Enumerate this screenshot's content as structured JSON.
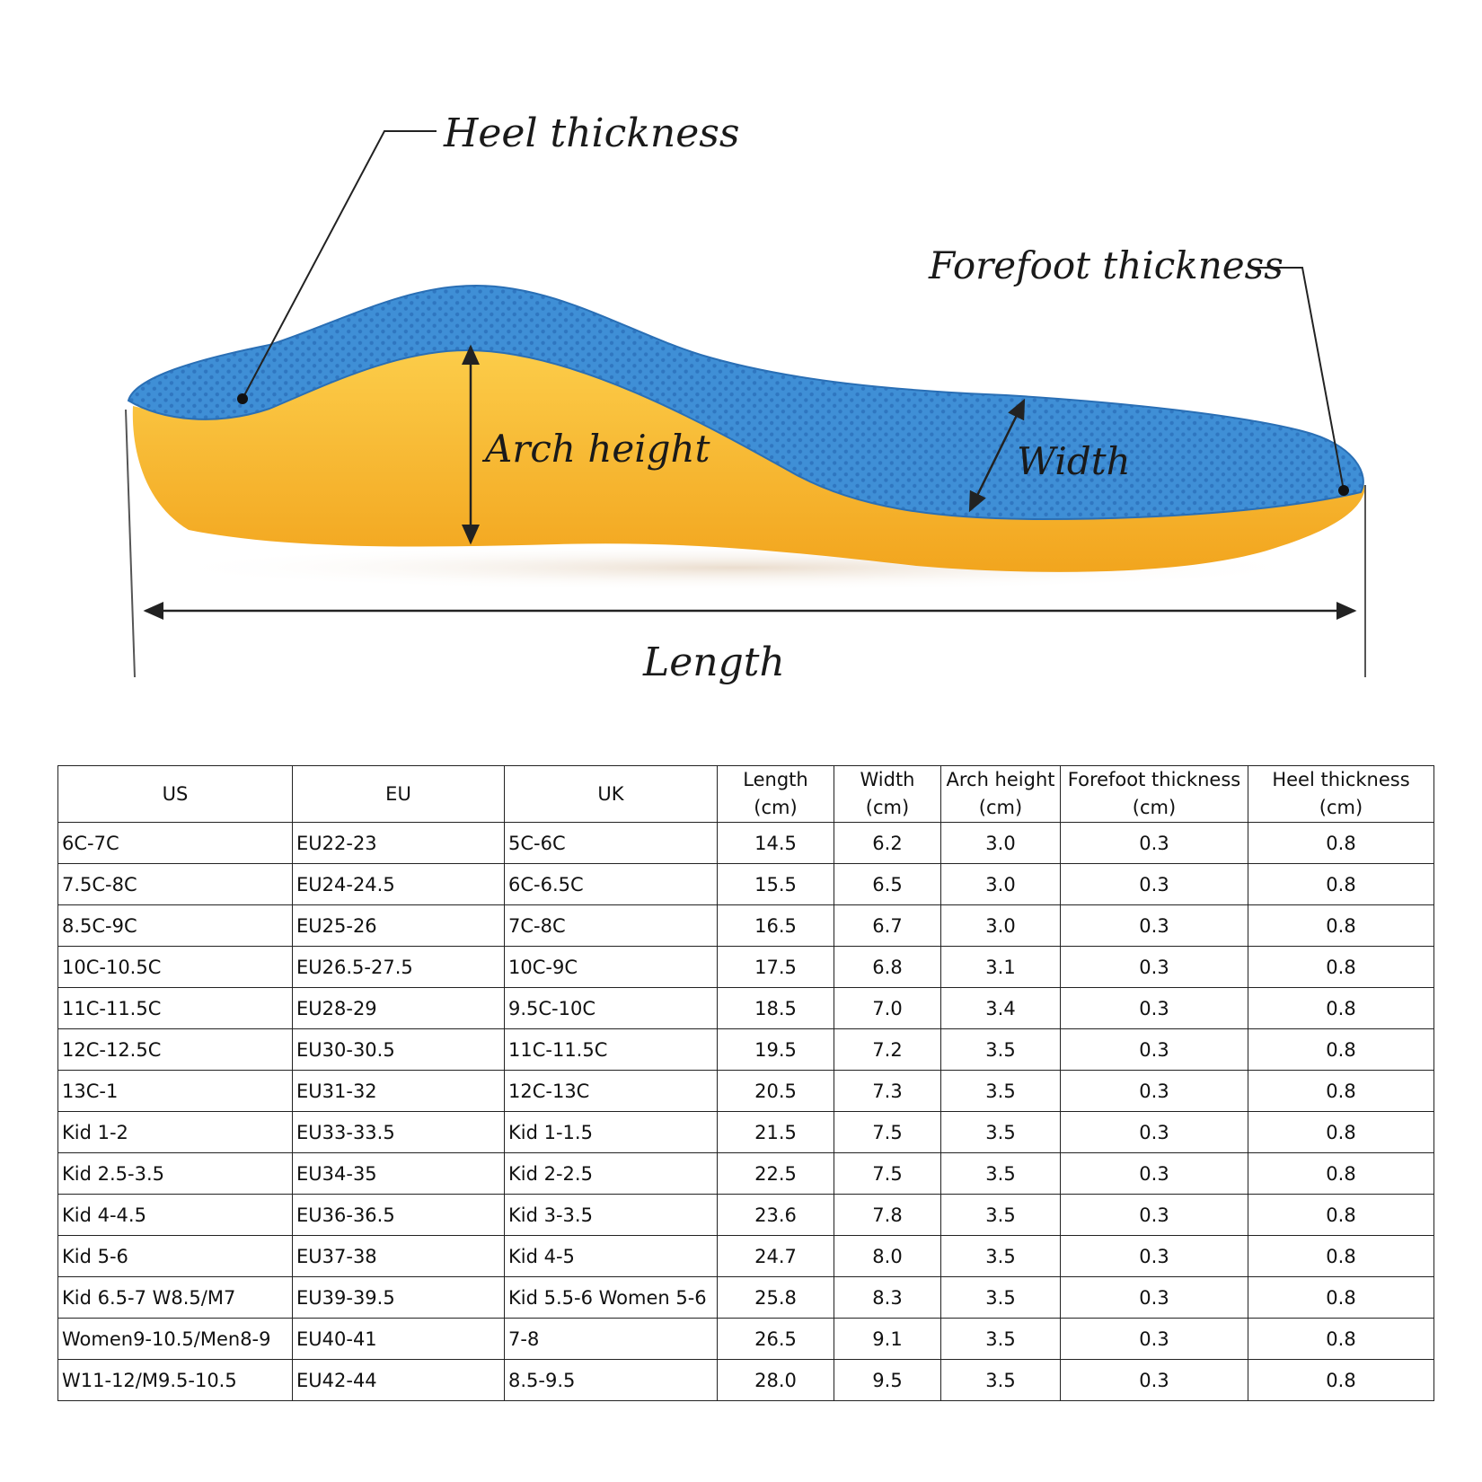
{
  "diagram": {
    "labels": {
      "heel_thickness": "Heel thickness",
      "forefoot_thickness": "Forefoot thickness",
      "arch_height": "Arch height",
      "width": "Width",
      "length": "Length"
    },
    "colors": {
      "insole_top": "#3f8fd6",
      "insole_top_dark": "#2f76c0",
      "insole_base": "#f6b830",
      "insole_base_light": "#fccd4a",
      "line": "#222222"
    }
  },
  "table": {
    "headers": [
      [
        "US",
        ""
      ],
      [
        "EU",
        ""
      ],
      [
        "UK",
        ""
      ],
      [
        "Length",
        "(cm)"
      ],
      [
        "Width",
        "(cm)"
      ],
      [
        "Arch height",
        "(cm)"
      ],
      [
        "Forefoot thickness",
        "(cm)"
      ],
      [
        "Heel thickness",
        "(cm)"
      ]
    ],
    "rows": [
      [
        "6C-7C",
        "EU22-23",
        "5C-6C",
        "14.5",
        "6.2",
        "3.0",
        "0.3",
        "0.8"
      ],
      [
        "7.5C-8C",
        "EU24-24.5",
        "6C-6.5C",
        "15.5",
        "6.5",
        "3.0",
        "0.3",
        "0.8"
      ],
      [
        "8.5C-9C",
        "EU25-26",
        "7C-8C",
        "16.5",
        "6.7",
        "3.0",
        "0.3",
        "0.8"
      ],
      [
        "10C-10.5C",
        "EU26.5-27.5",
        "10C-9C",
        "17.5",
        "6.8",
        "3.1",
        "0.3",
        "0.8"
      ],
      [
        "11C-11.5C",
        "EU28-29",
        "9.5C-10C",
        "18.5",
        "7.0",
        "3.4",
        "0.3",
        "0.8"
      ],
      [
        "12C-12.5C",
        "EU30-30.5",
        "11C-11.5C",
        "19.5",
        "7.2",
        "3.5",
        "0.3",
        "0.8"
      ],
      [
        "13C-1",
        "EU31-32",
        "12C-13C",
        "20.5",
        "7.3",
        "3.5",
        "0.3",
        "0.8"
      ],
      [
        "Kid 1-2",
        "EU33-33.5",
        "Kid 1-1.5",
        "21.5",
        "7.5",
        "3.5",
        "0.3",
        "0.8"
      ],
      [
        "Kid 2.5-3.5",
        "EU34-35",
        "Kid 2-2.5",
        "22.5",
        "7.5",
        "3.5",
        "0.3",
        "0.8"
      ],
      [
        "Kid 4-4.5",
        "EU36-36.5",
        "Kid 3-3.5",
        "23.6",
        "7.8",
        "3.5",
        "0.3",
        "0.8"
      ],
      [
        "Kid 5-6",
        "EU37-38",
        "Kid 4-5",
        "24.7",
        "8.0",
        "3.5",
        "0.3",
        "0.8"
      ],
      [
        "Kid 6.5-7 W8.5/M7",
        "EU39-39.5",
        "Kid 5.5-6 Women 5-6",
        "25.8",
        "8.3",
        "3.5",
        "0.3",
        "0.8"
      ],
      [
        "Women9-10.5/Men8-9",
        "EU40-41",
        "7-8",
        "26.5",
        "9.1",
        "3.5",
        "0.3",
        "0.8"
      ],
      [
        "W11-12/M9.5-10.5",
        "EU42-44",
        "8.5-9.5",
        "28.0",
        "9.5",
        "3.5",
        "0.3",
        "0.8"
      ]
    ]
  }
}
